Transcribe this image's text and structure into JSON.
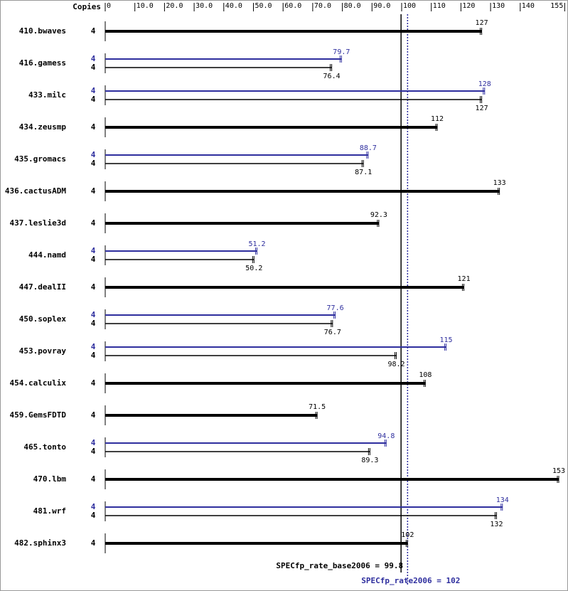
{
  "chart_data": {
    "type": "bar",
    "orientation": "horizontal",
    "copies_label": "Copies",
    "categories": [
      "410.bwaves",
      "416.gamess",
      "433.milc",
      "434.zeusmp",
      "435.gromacs",
      "436.cactusADM",
      "437.leslie3d",
      "444.namd",
      "447.dealII",
      "450.soplex",
      "453.povray",
      "454.calculix",
      "459.GemsFDTD",
      "465.tonto",
      "470.lbm",
      "481.wrf",
      "482.sphinx3"
    ],
    "series": [
      {
        "color": "#000000",
        "values": [
          127,
          76.4,
          127,
          112,
          87.1,
          133,
          92.3,
          50.2,
          121,
          76.7,
          98.2,
          108,
          71.5,
          89.3,
          153,
          132,
          102
        ],
        "copies": [
          4,
          4,
          4,
          4,
          4,
          4,
          4,
          4,
          4,
          4,
          4,
          4,
          4,
          4,
          4,
          4,
          4
        ]
      },
      {
        "color": "#2e2e9e",
        "values": [
          null,
          79.7,
          128,
          null,
          88.7,
          null,
          null,
          51.2,
          null,
          77.6,
          115,
          null,
          null,
          94.8,
          null,
          134,
          null
        ],
        "copies": [
          null,
          4,
          4,
          null,
          4,
          null,
          null,
          4,
          null,
          4,
          4,
          null,
          null,
          4,
          null,
          4,
          null
        ]
      }
    ],
    "xlim": [
      0,
      155
    ],
    "xticks": [
      0,
      {
        "value": 10,
        "label": "10.0"
      },
      {
        "value": 20,
        "label": "20.0"
      },
      {
        "value": 30,
        "label": "30.0"
      },
      {
        "value": 40,
        "label": "40.0"
      },
      {
        "value": 50,
        "label": "50.0"
      },
      {
        "value": 60,
        "label": "60.0"
      },
      {
        "value": 70,
        "label": "70.0"
      },
      {
        "value": 80,
        "label": "80.0"
      },
      {
        "value": 90,
        "label": "90.0"
      },
      100,
      110,
      120,
      130,
      140,
      155
    ],
    "reference_lines": [
      {
        "label": "SPECfp_rate_base2006 = 99.8",
        "value": 99.8,
        "color": "#000000",
        "style": "solid"
      },
      {
        "label": "SPECfp_rate2006 = 102",
        "value": 102,
        "color": "#2e2e9e",
        "style": "dotted"
      }
    ]
  }
}
